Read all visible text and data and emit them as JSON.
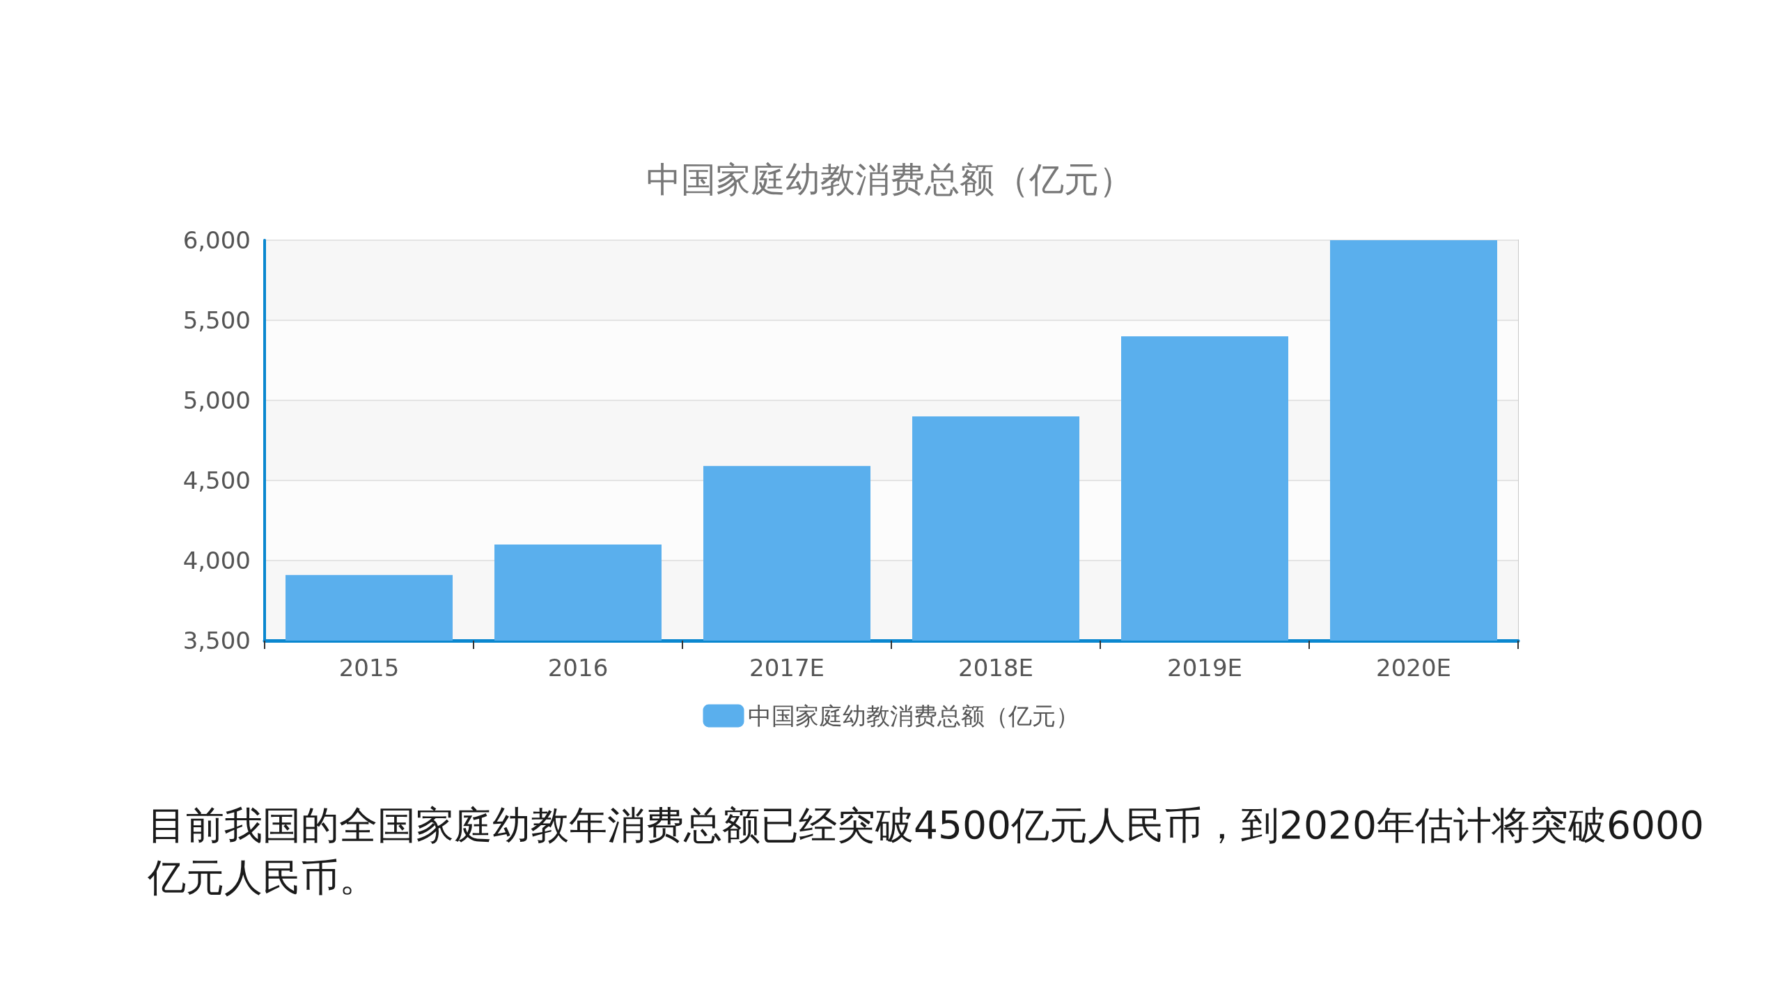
{
  "chart_data": {
    "type": "bar",
    "title": "中国家庭幼教消费总额（亿元）",
    "categories": [
      "2015",
      "2016",
      "2017E",
      "2018E",
      "2019E",
      "2020E"
    ],
    "series": [
      {
        "name": "中国家庭幼教消费总额（亿元）",
        "color": "#5aafed",
        "values": [
          3910,
          4100,
          4590,
          4900,
          5400,
          6000
        ]
      }
    ],
    "ylim": [
      3500,
      6000
    ],
    "yticks": [
      {
        "value": 3500,
        "label": "3,500"
      },
      {
        "value": 4000,
        "label": "4,000"
      },
      {
        "value": 4500,
        "label": "4,500"
      },
      {
        "value": 5000,
        "label": "5,000"
      },
      {
        "value": 5500,
        "label": "5,500"
      },
      {
        "value": 6000,
        "label": "6,000"
      }
    ],
    "grid": "y",
    "legend": "bottom",
    "annotations": [
      "目前我国的全国家庭幼教年消费总额已经突破4500亿元人民币，到2020年估计将突破6000亿元人民币。"
    ]
  }
}
